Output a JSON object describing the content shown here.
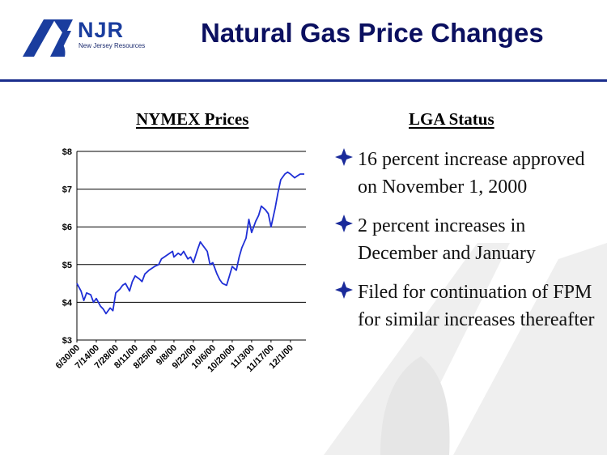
{
  "header": {
    "logo_name": "NJR",
    "logo_sub": "New Jersey Resources",
    "title": "Natural Gas Price Changes"
  },
  "colors": {
    "brand": "#1a3d9e",
    "title": "#0b1060",
    "line": "#1f2fd6",
    "bullet": "#1a2a9a"
  },
  "left_heading": "NYMEX Prices",
  "right_heading": "LGA Status",
  "bullets": [
    {
      "icon": "four-point-star-icon",
      "text": "16 percent increase approved on November 1, 2000"
    },
    {
      "icon": "four-point-star-icon",
      "text": "2 percent increases in December and January"
    },
    {
      "icon": "four-point-star-icon",
      "text": "Filed for continuation of FPM for similar increases thereafter"
    }
  ],
  "chart_data": {
    "type": "line",
    "title": "NYMEX Prices",
    "xlabel": "",
    "ylabel": "",
    "ylim": [
      3,
      8
    ],
    "y_ticks": [
      "$3",
      "$4",
      "$5",
      "$6",
      "$7",
      "$8"
    ],
    "x_ticks": [
      "6/30/00",
      "7/14/00",
      "7/28/00",
      "8/11/00",
      "8/25/00",
      "9/8/00",
      "9/22/00",
      "10/6/00",
      "10/20/00",
      "11/3/00",
      "11/17/00",
      "12/1/00"
    ],
    "grid": "horizontal",
    "series": [
      {
        "name": "",
        "x": [
          "6/30/00",
          "7/3/00",
          "7/5/00",
          "7/7/00",
          "7/10/00",
          "7/12/00",
          "7/14/00",
          "7/17/00",
          "7/19/00",
          "7/21/00",
          "7/24/00",
          "7/26/00",
          "7/28/00",
          "7/31/00",
          "8/2/00",
          "8/4/00",
          "8/7/00",
          "8/9/00",
          "8/11/00",
          "8/14/00",
          "8/16/00",
          "8/18/00",
          "8/21/00",
          "8/23/00",
          "8/25/00",
          "8/28/00",
          "8/30/00",
          "9/1/00",
          "9/5/00",
          "9/7/00",
          "9/8/00",
          "9/11/00",
          "9/13/00",
          "9/15/00",
          "9/18/00",
          "9/20/00",
          "9/22/00",
          "9/25/00",
          "9/27/00",
          "9/29/00",
          "10/2/00",
          "10/4/00",
          "10/6/00",
          "10/9/00",
          "10/11/00",
          "10/13/00",
          "10/16/00",
          "10/18/00",
          "10/20/00",
          "10/23/00",
          "10/25/00",
          "10/27/00",
          "10/30/00",
          "11/1/00",
          "11/3/00",
          "11/6/00",
          "11/8/00",
          "11/10/00",
          "11/13/00",
          "11/15/00",
          "11/17/00",
          "11/20/00",
          "11/22/00",
          "11/24/00",
          "11/27/00",
          "11/29/00",
          "12/1/00",
          "12/4/00",
          "12/6/00",
          "12/8/00",
          "12/11/00"
        ],
        "values": [
          4.5,
          4.3,
          4.05,
          4.25,
          4.2,
          4.0,
          4.1,
          3.9,
          3.82,
          3.7,
          3.85,
          3.78,
          4.25,
          4.35,
          4.45,
          4.5,
          4.3,
          4.55,
          4.7,
          4.62,
          4.55,
          4.75,
          4.85,
          4.9,
          4.95,
          5.0,
          5.15,
          5.2,
          5.3,
          5.35,
          5.2,
          5.3,
          5.25,
          5.35,
          5.15,
          5.2,
          5.05,
          5.4,
          5.6,
          5.5,
          5.35,
          5.0,
          5.05,
          4.75,
          4.6,
          4.5,
          4.45,
          4.7,
          4.95,
          4.85,
          5.2,
          5.45,
          5.7,
          6.2,
          5.85,
          6.15,
          6.3,
          6.55,
          6.45,
          6.35,
          6.0,
          6.5,
          6.9,
          7.25,
          7.4,
          7.45,
          7.4,
          7.3,
          7.35,
          7.4,
          7.4
        ]
      }
    ]
  }
}
